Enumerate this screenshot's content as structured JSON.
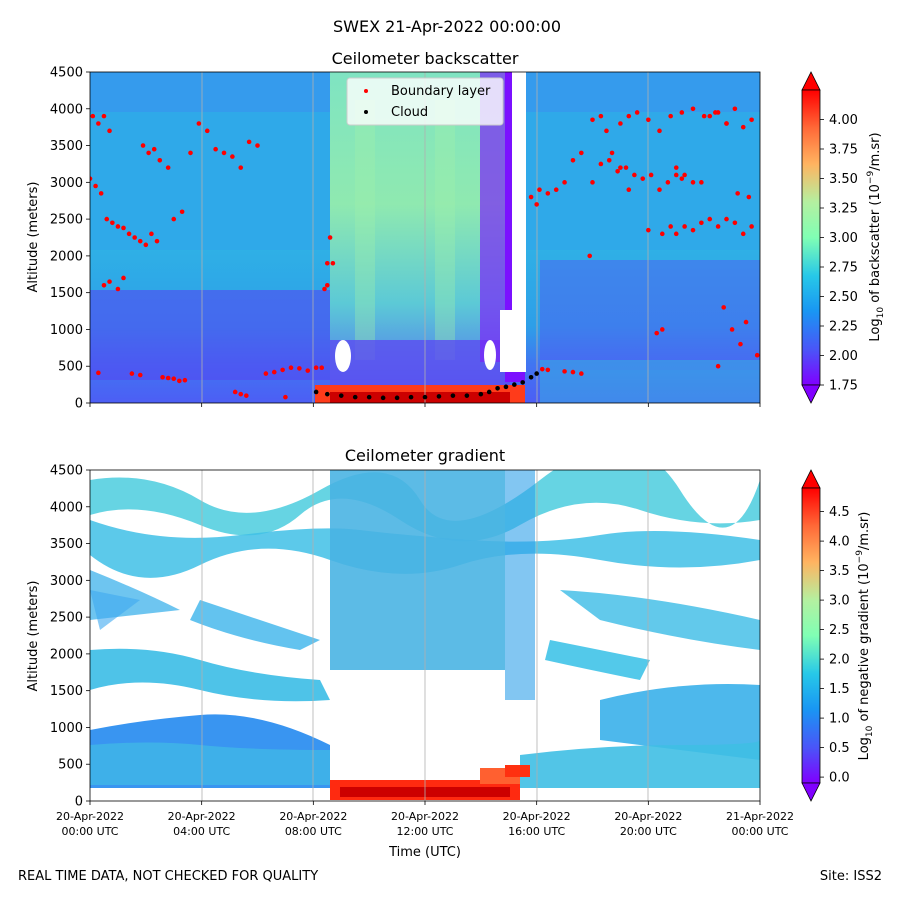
{
  "figure": {
    "suptitle": "SWEX 21-Apr-2022 00:00:00",
    "footer_left": "REAL TIME DATA, NOT CHECKED FOR QUALITY",
    "footer_right": "Site: ISS2"
  },
  "chart_data": [
    {
      "type": "heatmap",
      "title": "Ceilometer backscatter",
      "xlabel": "",
      "ylabel": "Altitude (meters)",
      "ylim": [
        0,
        4500
      ],
      "yticks": [
        0,
        500,
        1000,
        1500,
        2000,
        2500,
        3000,
        3500,
        4000,
        4500
      ],
      "xlim_hours": [
        0,
        24
      ],
      "xticks_hours": [
        0,
        4,
        8,
        12,
        16,
        20,
        24
      ],
      "xtick_labels": [],
      "colorbar": {
        "label_prefix": "Log",
        "label_sub": "10",
        "label_mid": " of backscatter (10",
        "label_sup": "−9",
        "label_suffix": "/m.sr)",
        "min": 1.75,
        "max": 4.25,
        "ticks": [
          "1.75",
          "2.00",
          "2.25",
          "2.50",
          "2.75",
          "3.00",
          "3.25",
          "3.50",
          "3.75",
          "4.00"
        ],
        "tick_values": [
          1.75,
          2.0,
          2.25,
          2.5,
          2.75,
          3.0,
          3.25,
          3.5,
          3.75,
          4.0
        ],
        "colormap": "rainbow"
      },
      "legend": {
        "placement": "upper center",
        "entries": [
          {
            "label": "Boundary layer",
            "color": "#ff0000"
          },
          {
            "label": "Cloud",
            "color": "#000000"
          }
        ]
      },
      "series": [
        {
          "name": "Boundary layer",
          "x_hours": [
            0,
            0.2,
            0.4,
            0.6,
            0.8,
            1.0,
            1.2,
            1.4,
            1.6,
            1.8,
            2.0,
            2.2,
            2.4,
            0.1,
            0.3,
            0.5,
            0.7,
            1.9,
            2.1,
            2.3,
            2.5,
            2.8,
            3.0,
            3.3,
            3.6,
            3.9,
            4.2,
            4.5,
            4.8,
            5.1,
            5.4,
            5.7,
            6.0,
            6.3,
            6.6,
            6.9,
            7.2,
            7.5,
            7.8,
            8.1,
            8.3,
            0.3,
            0.5,
            0.7,
            1.0,
            1.2,
            1.5,
            1.8,
            2.6,
            2.8,
            3.0,
            3.2,
            3.4,
            5.2,
            5.4,
            5.6,
            7.0,
            8.4,
            8.5,
            8.6,
            8.7,
            15.8,
            16.1,
            16.4,
            16.7,
            17.0,
            17.3,
            17.6,
            18.0,
            18.3,
            18.5,
            18.7,
            19.0,
            19.3,
            20.0,
            20.5,
            21.0,
            21.3,
            21.6,
            21.9,
            22.2,
            22.5,
            22.8,
            23.1,
            23.4,
            23.7,
            20.8,
            21.0,
            21.2,
            18.0,
            18.3,
            18.6,
            18.9,
            19.2,
            19.5,
            19.8,
            20.1,
            20.4,
            20.7,
            21.0,
            21.3,
            21.6,
            21.9,
            22.2,
            22.5,
            22.8,
            23.1,
            23.4,
            23.7,
            19.0,
            19.3,
            19.6,
            20.0,
            20.4,
            20.8,
            21.2,
            21.6,
            22.0,
            22.4,
            22.8,
            23.2,
            23.6,
            16.0,
            16.2,
            16.4,
            17.0,
            17.3,
            17.6,
            17.9,
            20.3,
            20.5,
            23.0,
            23.3,
            23.5,
            23.9,
            22.5,
            22.7,
            8.5,
            7.2
          ],
          "y_meters": [
            3050,
            2950,
            2850,
            2500,
            2450,
            2400,
            2380,
            2300,
            2250,
            2200,
            2150,
            2300,
            2200,
            3900,
            3800,
            3900,
            3700,
            3500,
            3400,
            3450,
            3300,
            3200,
            2500,
            2600,
            3400,
            3800,
            3700,
            3450,
            3400,
            3350,
            3200,
            3550,
            3500,
            400,
            420,
            450,
            480,
            470,
            440,
            480,
            480,
            410,
            1600,
            1650,
            1550,
            1700,
            400,
            380,
            350,
            340,
            330,
            300,
            310,
            150,
            120,
            100,
            80,
            1550,
            1600,
            2250,
            1900,
            2800,
            2900,
            2850,
            2900,
            3000,
            3300,
            3400,
            3850,
            3900,
            3700,
            3400,
            3200,
            2900,
            2350,
            2300,
            2300,
            2400,
            2350,
            2450,
            2500,
            2400,
            2500,
            2450,
            2300,
            2400,
            2400,
            3100,
            3050,
            3000,
            3250,
            3300,
            3150,
            3200,
            3100,
            3050,
            3100,
            2900,
            3000,
            3200,
            3100,
            3000,
            3000,
            3900,
            3950,
            3800,
            4000,
            3750,
            3850,
            3800,
            3900,
            3950,
            3850,
            3700,
            3900,
            3950,
            4000,
            3900,
            3950,
            3800,
            2850,
            2800,
            2700,
            460,
            450,
            430,
            420,
            400,
            2000,
            950,
            1000,
            1000,
            800,
            1100,
            650,
            500,
            1300,
            1900
          ],
          "color": "#ff0000"
        },
        {
          "name": "Cloud",
          "x_hours": [
            8.1,
            8.5,
            9.0,
            9.5,
            10.0,
            10.5,
            11.0,
            11.5,
            12.0,
            12.5,
            13.0,
            13.5,
            14.0,
            14.3,
            14.6,
            14.9,
            15.2,
            15.5,
            15.8,
            16.0
          ],
          "y_meters": [
            150,
            120,
            100,
            80,
            80,
            70,
            70,
            80,
            80,
            90,
            100,
            100,
            120,
            150,
            200,
            220,
            250,
            280,
            350,
            400
          ],
          "color": "#000000"
        }
      ]
    },
    {
      "type": "heatmap",
      "title": "Ceilometer gradient",
      "xlabel": "Time (UTC)",
      "ylabel": "Altitude (meters)",
      "ylim": [
        0,
        4500
      ],
      "yticks": [
        0,
        500,
        1000,
        1500,
        2000,
        2500,
        3000,
        3500,
        4000,
        4500
      ],
      "xlim_hours": [
        0,
        24
      ],
      "xticks_hours": [
        0,
        4,
        8,
        12,
        16,
        20,
        24
      ],
      "xtick_labels": [
        [
          "20-Apr-2022",
          "00:00 UTC"
        ],
        [
          "20-Apr-2022",
          "04:00 UTC"
        ],
        [
          "20-Apr-2022",
          "08:00 UTC"
        ],
        [
          "20-Apr-2022",
          "12:00 UTC"
        ],
        [
          "20-Apr-2022",
          "16:00 UTC"
        ],
        [
          "20-Apr-2022",
          "20:00 UTC"
        ],
        [
          "21-Apr-2022",
          "00:00 UTC"
        ]
      ],
      "colorbar": {
        "label_prefix": "Log",
        "label_sub": "10",
        "label_mid": " of negative gradient (10",
        "label_sup": "−9",
        "label_suffix": "/m.sr)",
        "min": -0.1,
        "max": 4.9,
        "ticks": [
          "0.0",
          "0.5",
          "1.0",
          "1.5",
          "2.0",
          "2.5",
          "3.0",
          "3.5",
          "4.0",
          "4.5"
        ],
        "tick_values": [
          0,
          0.5,
          1.0,
          1.5,
          2.0,
          2.5,
          3.0,
          3.5,
          4.0,
          4.5
        ],
        "colormap": "rainbow"
      }
    }
  ]
}
